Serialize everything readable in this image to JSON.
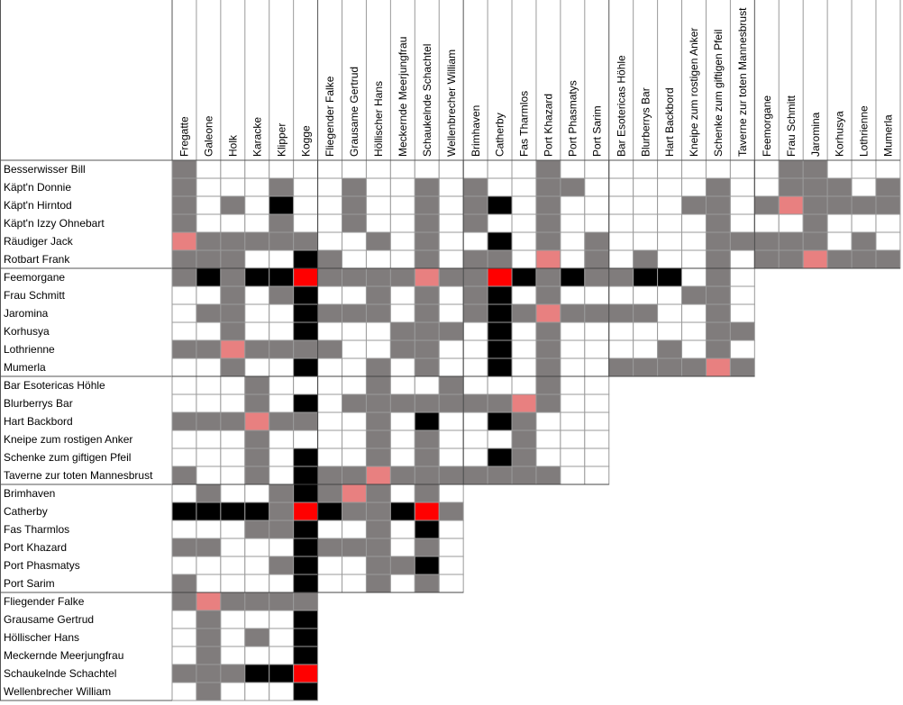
{
  "columns": [
    "Fregatte",
    "Galeone",
    "Holk",
    "Karacke",
    "Klipper",
    "Kogge",
    "Fliegender Falke",
    "Grausame Gertrud",
    "Höllischer Hans",
    "Meckernde Meerjungfrau",
    "Schaukelnde Schachtel",
    "Wellenbrecher William",
    "Brimhaven",
    "Catherby",
    "Fas Tharmlos",
    "Port Khazard",
    "Port Phasmatys",
    "Port Sarim",
    "Bar Esotericas Höhle",
    "Blurberrys Bar",
    "Hart Backbord",
    "Kneipe zum rostigen Anker",
    "Schenke zum giftigen Pfeil",
    "Taverne zur toten Mannesbrust",
    "Feemorgane",
    "Frau Schmitt",
    "Jaromina",
    "Korhusya",
    "Lothrienne",
    "Mumerla"
  ],
  "rows": [
    "Besserwisser Bill",
    "Käpt'n Donnie",
    "Käpt'n Hirntod",
    "Käpt'n Izzy Ohnebart",
    "Räudiger Jack",
    "Rotbart Frank",
    "Feemorgane",
    "Frau Schmitt",
    "Jaromina",
    "Korhusya",
    "Lothrienne",
    "Mumerla",
    "Bar Esotericas Höhle",
    "Blurberrys Bar",
    "Hart Backbord",
    "Kneipe zum rostigen Anker",
    "Schenke zum giftigen Pfeil",
    "Taverne zur toten Mannesbrust",
    "Brimhaven",
    "Catherby",
    "Fas Tharmlos",
    "Port Khazard",
    "Port Phasmatys",
    "Port Sarim",
    "Fliegender Falke",
    "Grausame Gertrud",
    "Höllischer Hans",
    "Meckernde Meerjungfrau",
    "Schaukelnde Schachtel",
    "Wellenbrecher William"
  ]
}
